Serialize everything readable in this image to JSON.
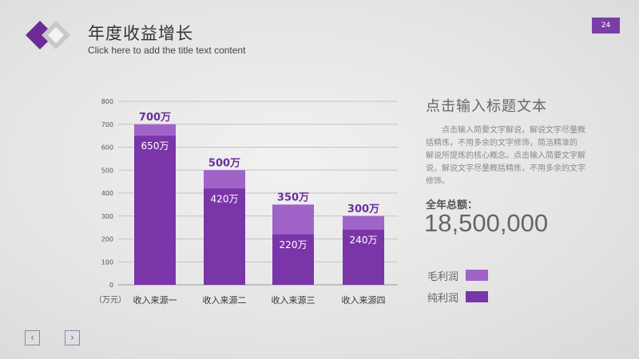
{
  "header": {
    "title": "年度收益增长",
    "subtitle": "Click here to add the title text content",
    "page_number": "24"
  },
  "side": {
    "heading": "点击输入标题文本",
    "body": "点击输入简要文字解说，解说文字尽量概括精炼，不用多余的文字修饰，简洁精准的 解说所提炼的核心概念。点击输入简要文字解说，解说文字尽量概括精炼，不用多余的文字修饰。",
    "total_label": "全年总额：",
    "total_value": "18,500,000"
  },
  "legend": [
    {
      "label": "毛利润",
      "color": "#a064c8"
    },
    {
      "label": "纯利润",
      "color": "#7a35a8"
    }
  ],
  "nav": {
    "prev": "‹",
    "next": "›"
  },
  "chart_data": {
    "type": "bar",
    "categories": [
      "收入来源一",
      "收入来源二",
      "收入来源三",
      "收入来源四"
    ],
    "series": [
      {
        "name": "毛利润",
        "values": [
          700,
          500,
          350,
          300
        ],
        "labels": [
          "700万",
          "500万",
          "350万",
          "300万"
        ],
        "color": "#a064c8"
      },
      {
        "name": "纯利润",
        "values": [
          650,
          420,
          220,
          240
        ],
        "labels": [
          "650万",
          "420万",
          "220万",
          "240万"
        ],
        "color": "#7a35a8"
      }
    ],
    "yticks": [
      "0",
      "100",
      "200",
      "300",
      "400",
      "500",
      "600",
      "700",
      "800"
    ],
    "ylim": [
      0,
      800
    ],
    "unit_label": "（万元）",
    "grid": true
  }
}
